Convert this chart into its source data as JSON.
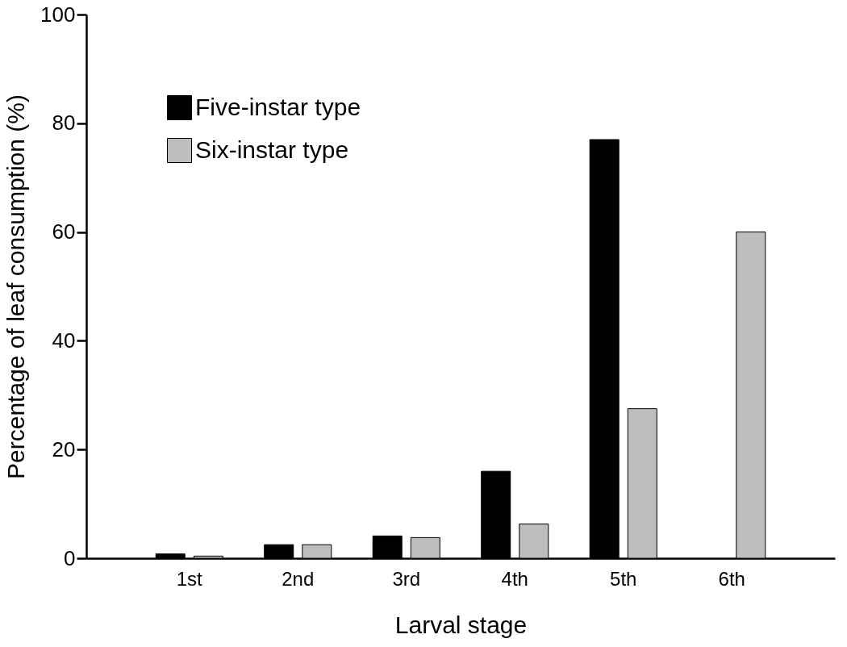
{
  "chart_data": {
    "type": "bar",
    "xlabel": "Larval stage",
    "ylabel": "Percentage of leaf consumption (%)",
    "categories": [
      "1st",
      "2nd",
      "3rd",
      "4th",
      "5th",
      "6th"
    ],
    "series": [
      {
        "name": "Five-instar type",
        "color": "#000000",
        "values": [
          0.8,
          2.5,
          4.1,
          16,
          77,
          null
        ]
      },
      {
        "name": "Six-instar type",
        "color": "#bebebe",
        "values": [
          0.4,
          2.5,
          3.8,
          6.3,
          27.5,
          60
        ]
      }
    ],
    "ylim": [
      0,
      100
    ],
    "yticks": [
      0,
      20,
      40,
      60,
      80,
      100
    ],
    "grid": false,
    "legend": "top left"
  }
}
